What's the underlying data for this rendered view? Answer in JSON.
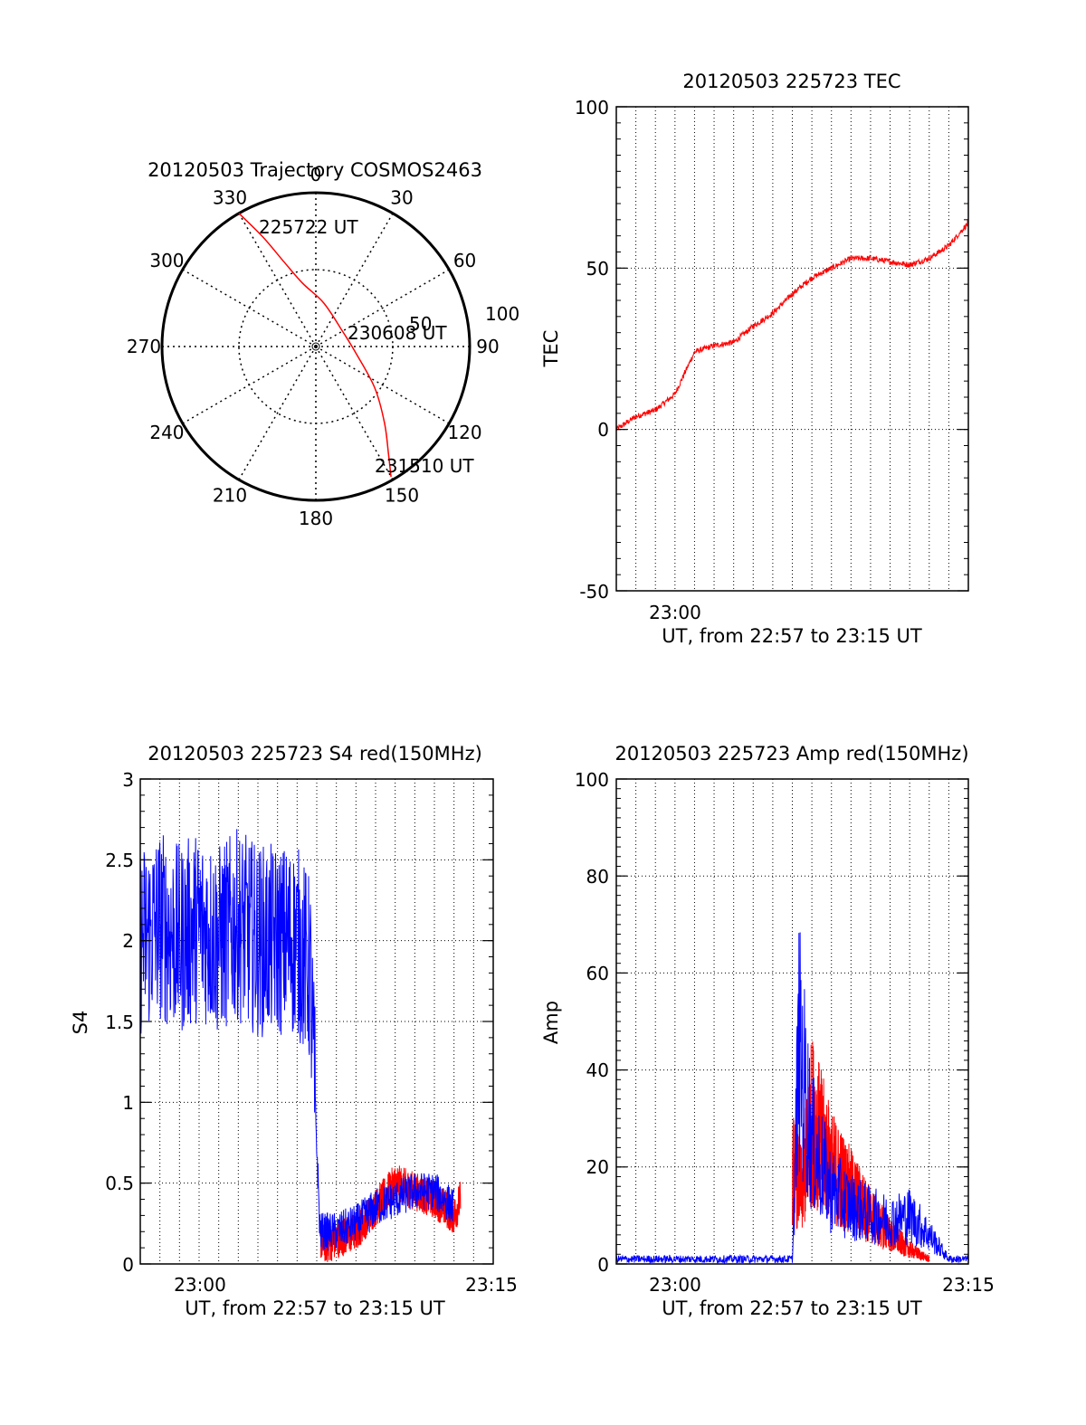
{
  "colors": {
    "red": "#ff0000",
    "blue": "#0000ff",
    "axis": "#000000"
  },
  "chart_data": [
    {
      "type": "polar",
      "title": "20120503 Trajectory COSMOS2463",
      "angle_labels": [
        "0",
        "30",
        "60",
        "90",
        "120",
        "150",
        "180",
        "210",
        "240",
        "270",
        "300",
        "330"
      ],
      "radius_labels": [
        "50",
        "100"
      ],
      "trajectory_start_label": "225722 UT",
      "trajectory_mid_label": "230608 UT",
      "trajectory_end_label": "231510 UT",
      "series": [
        {
          "points_az_el": [
            [
              330,
              0
            ],
            [
              334,
              18
            ],
            [
              339,
              36
            ],
            [
              348,
              52
            ],
            [
              10,
              64
            ],
            [
              60,
              72
            ],
            [
              100,
              66
            ],
            [
              125,
              48
            ],
            [
              138,
              30
            ],
            [
              146,
              14
            ],
            [
              150,
              2
            ]
          ]
        }
      ]
    },
    {
      "type": "line",
      "title": "20120503 225723 TEC",
      "xlabel": "UT, from 22:57 to 23:15 UT",
      "ylabel": "TEC",
      "xlim": [
        "22:57",
        "23:15"
      ],
      "ylim": [
        -50,
        100
      ],
      "yticks": [
        "-50",
        "0",
        "50",
        "100"
      ],
      "xtick_labels": [
        "23:00"
      ],
      "series": [
        {
          "x": [
            "22:57",
            "22:58",
            "22:59",
            "23:00",
            "23:01",
            "23:02",
            "23:03",
            "23:04",
            "23:05",
            "23:06",
            "23:07",
            "23:08",
            "23:09",
            "23:10",
            "23:11",
            "23:12",
            "23:13",
            "23:14",
            "23:15"
          ],
          "values": [
            0,
            4,
            6,
            11,
            24,
            26,
            27,
            32,
            36,
            42,
            47,
            50,
            53,
            53,
            52,
            51,
            53,
            57,
            64
          ]
        }
      ]
    },
    {
      "type": "line",
      "title": "20120503 225723 S4 red(150MHz)",
      "xlabel": "UT, from 22:57 to 23:15 UT",
      "ylabel": "S4",
      "xlim": [
        "22:57",
        "23:15"
      ],
      "ylim": [
        0,
        3
      ],
      "yticks": [
        "0",
        "0.5",
        "1",
        "1.5",
        "2",
        "2.5",
        "3"
      ],
      "xtick_labels": [
        "23:00",
        "23:15"
      ],
      "series": [
        {
          "x": [
            "23:06:10",
            "23:06:30",
            "23:07:00",
            "23:08",
            "23:09",
            "23:10",
            "23:11",
            "23:12",
            "23:13",
            "23:13:20"
          ],
          "values": [
            0.15,
            0.12,
            0.15,
            0.2,
            0.35,
            0.5,
            0.45,
            0.4,
            0.3,
            0.4
          ]
        },
        {
          "x": [
            "22:57",
            "22:58",
            "22:59",
            "23:00",
            "23:01",
            "23:02",
            "23:03",
            "23:04",
            "23:05",
            "23:05:40",
            "23:06:10",
            "23:07:00",
            "23:08",
            "23:09",
            "23:10",
            "23:11",
            "23:12",
            "23:13"
          ],
          "values": [
            2.0,
            2.1,
            2.0,
            2.1,
            2.0,
            2.1,
            2.0,
            2.0,
            2.0,
            1.8,
            0.2,
            0.2,
            0.25,
            0.35,
            0.4,
            0.45,
            0.45,
            0.35
          ]
        }
      ]
    },
    {
      "type": "line",
      "title": "20120503 225723 Amp red(150MHz)",
      "xlabel": "UT, from 22:57 to 23:15 UT",
      "ylabel": "Amp",
      "xlim": [
        "22:57",
        "23:15"
      ],
      "ylim": [
        0,
        100
      ],
      "yticks": [
        "0",
        "20",
        "40",
        "60",
        "80",
        "100"
      ],
      "xtick_labels": [
        "23:00",
        "23:15"
      ],
      "series": [
        {
          "x": [
            "23:06",
            "23:06:30",
            "23:07",
            "23:08",
            "23:09",
            "23:10",
            "23:11",
            "23:12",
            "23:13"
          ],
          "values": [
            20,
            15,
            30,
            20,
            15,
            10,
            6,
            3,
            1
          ]
        },
        {
          "x": [
            "22:57",
            "22:59",
            "23:01",
            "23:03",
            "23:05",
            "23:06",
            "23:06:20",
            "23:07",
            "23:08",
            "23:09",
            "23:10",
            "23:11",
            "23:12",
            "23:13",
            "23:14",
            "23:15"
          ],
          "values": [
            1,
            1,
            1,
            1,
            1,
            1,
            45,
            25,
            15,
            12,
            10,
            9,
            10,
            6,
            1,
            1
          ]
        }
      ]
    }
  ]
}
